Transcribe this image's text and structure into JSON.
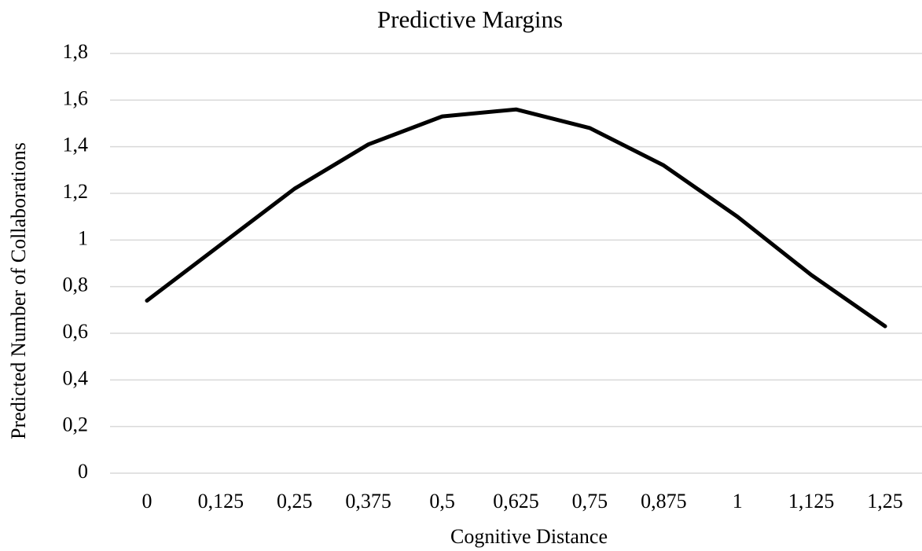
{
  "chart_data": {
    "type": "line",
    "title": "Predictive Margins",
    "xlabel": "Cognitive Distance",
    "ylabel": "Predicted Number of Collaborations",
    "categories": [
      "0",
      "0,125",
      "0,25",
      "0,375",
      "0,5",
      "0,625",
      "0,75",
      "0,875",
      "1",
      "1,125",
      "1,25"
    ],
    "values": [
      0.74,
      0.98,
      1.22,
      1.41,
      1.53,
      1.56,
      1.48,
      1.32,
      1.1,
      0.85,
      0.63
    ],
    "color": "#000000",
    "ylim": [
      0,
      1.8
    ],
    "yticks": [
      0,
      {
        "value": 0.2,
        "label": "0,2"
      },
      {
        "value": 0.4,
        "label": "0,4"
      },
      {
        "value": 0.6,
        "label": "0,6"
      },
      {
        "value": 0.8,
        "label": "0,8"
      },
      1,
      {
        "value": 1.2,
        "label": "1,2"
      },
      {
        "value": 1.4,
        "label": "1,4"
      },
      {
        "value": 1.6,
        "label": "1,6"
      },
      {
        "value": 1.8,
        "label": "1,8"
      }
    ],
    "grid": true
  }
}
